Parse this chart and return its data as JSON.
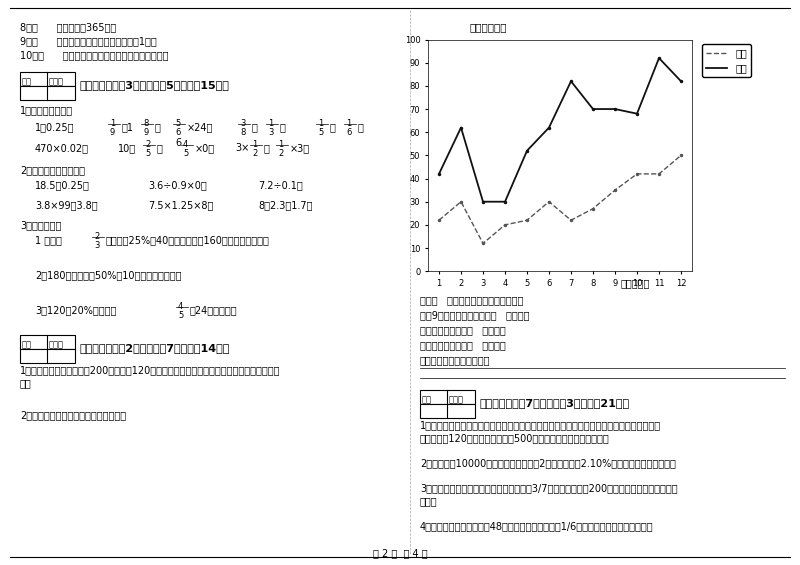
{
  "months": [
    1,
    2,
    3,
    4,
    5,
    6,
    7,
    8,
    9,
    10,
    11,
    12
  ],
  "zhichu_data": [
    22,
    30,
    12,
    20,
    22,
    30,
    22,
    27,
    35,
    42,
    42,
    50
  ],
  "shouru_data": [
    42,
    62,
    30,
    30,
    52,
    62,
    82,
    70,
    70,
    68,
    92,
    82
  ],
  "chart_title": "全额（万元）",
  "chart_xlabel": "月份（月）",
  "legend_zhichu": "支出",
  "legend_shouru": "收入",
  "bg_color": "#ffffff"
}
